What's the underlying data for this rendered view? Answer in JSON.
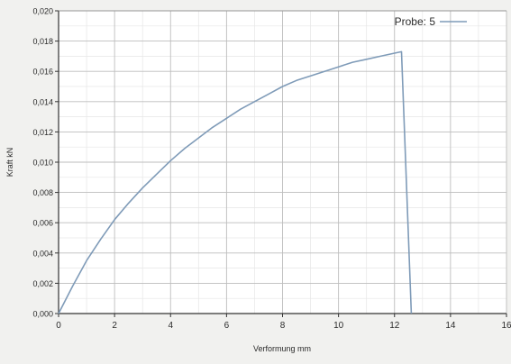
{
  "chart_data": {
    "type": "line",
    "title": "",
    "xlabel": "Verformung mm",
    "ylabel": "Kraft kN",
    "xlim": [
      0,
      16
    ],
    "ylim": [
      0,
      0.02
    ],
    "x_ticks": [
      "0",
      "2",
      "4",
      "6",
      "8",
      "10",
      "12",
      "14",
      "16"
    ],
    "y_ticks": [
      "0,000",
      "0,002",
      "0,004",
      "0,006",
      "0,008",
      "0,010",
      "0,012",
      "0,014",
      "0,016",
      "0,018",
      "0,020"
    ],
    "grid": true,
    "legend_position": "top-right",
    "series": [
      {
        "name": "Probe: 5",
        "color": "#7f9bb8",
        "x": [
          0,
          0.5,
          1,
          1.5,
          2,
          2.5,
          3,
          3.5,
          4,
          4.5,
          5,
          5.5,
          6,
          6.5,
          7,
          7.5,
          8,
          8.5,
          9,
          9.5,
          10,
          10.5,
          11,
          11.5,
          12,
          12.25,
          12.6
        ],
        "y": [
          0,
          0.0018,
          0.0035,
          0.0049,
          0.0062,
          0.0073,
          0.0083,
          0.0092,
          0.0101,
          0.0109,
          0.0116,
          0.0123,
          0.0129,
          0.0135,
          0.014,
          0.0145,
          0.015,
          0.0154,
          0.0157,
          0.016,
          0.0163,
          0.0166,
          0.0168,
          0.017,
          0.0172,
          0.0173,
          0
        ]
      }
    ]
  }
}
